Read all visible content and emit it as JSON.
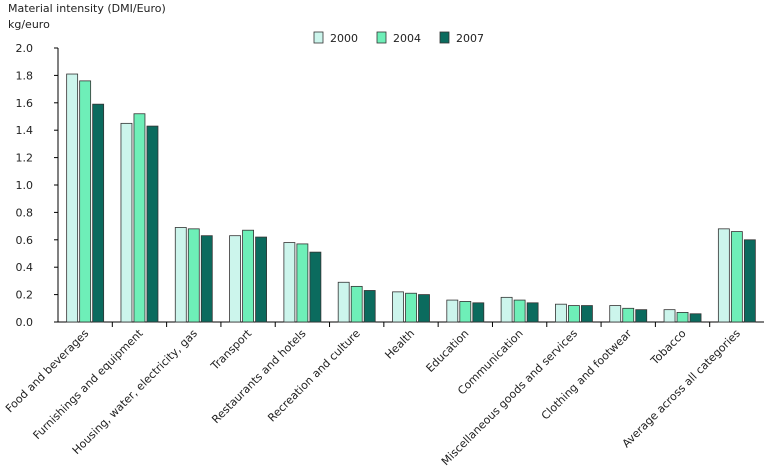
{
  "chart_data": {
    "type": "bar",
    "ylabel_line1": "Material intensity (DMI/Euro)",
    "ylabel_line2": "kg/euro",
    "ylim": [
      0,
      2.0
    ],
    "yticks": [
      "0.0",
      "0.2",
      "0.4",
      "0.6",
      "0.8",
      "1.0",
      "1.2",
      "1.4",
      "1.6",
      "1.8",
      "2.0"
    ],
    "grid": false,
    "legend_position": "top-center",
    "categories": [
      "Food and beverages",
      "Furnishings and equipment",
      "Housing, water, electricity, gas",
      "Transport",
      "Restaurants and hotels",
      "Recreation and culture",
      "Health",
      "Education",
      "Communication",
      "Miscellaneous goods and services",
      "Clothing and footwear",
      "Tobacco",
      "Average across all categories"
    ],
    "series": [
      {
        "name": "2000",
        "color": "#ccf5ec",
        "values": [
          1.81,
          1.45,
          0.69,
          0.63,
          0.58,
          0.29,
          0.22,
          0.16,
          0.18,
          0.13,
          0.12,
          0.09,
          0.68
        ]
      },
      {
        "name": "2004",
        "color": "#6eefb8",
        "values": [
          1.76,
          1.52,
          0.68,
          0.67,
          0.57,
          0.26,
          0.21,
          0.15,
          0.16,
          0.12,
          0.1,
          0.07,
          0.66
        ]
      },
      {
        "name": "2007",
        "color": "#0b6b5e",
        "values": [
          1.59,
          1.43,
          0.63,
          0.62,
          0.51,
          0.23,
          0.2,
          0.14,
          0.14,
          0.12,
          0.09,
          0.06,
          0.6
        ]
      }
    ]
  }
}
